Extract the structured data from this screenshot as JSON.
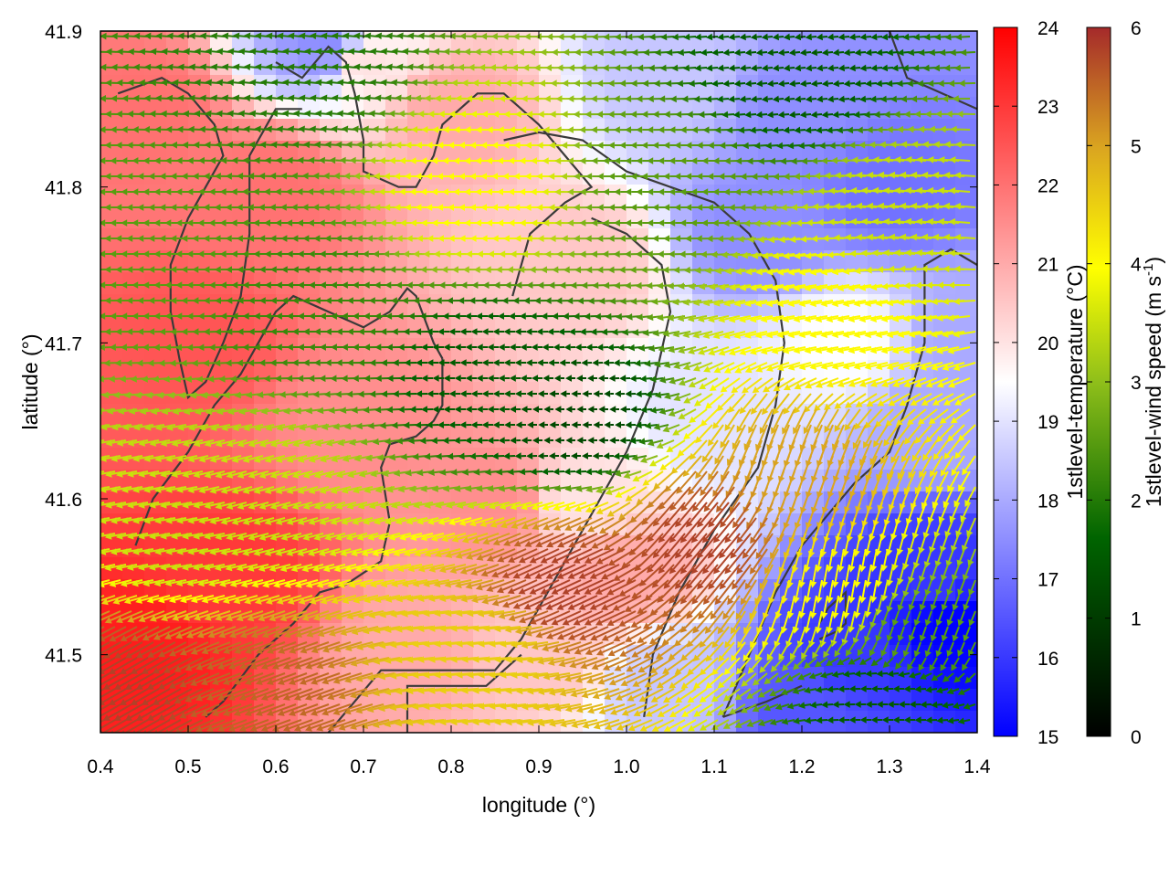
{
  "chart_data": {
    "type": "heatmap",
    "subtype": "temperature field with wind vector overlay and terrain contours",
    "xlabel": "longitude (°)",
    "ylabel": "latitude (°)",
    "xlim": [
      0.4,
      1.4
    ],
    "ylim": [
      41.45,
      41.9
    ],
    "xticks": [
      "0.4",
      "0.5",
      "0.6",
      "0.7",
      "0.8",
      "0.9",
      "1.0",
      "1.1",
      "1.2",
      "1.3",
      "1.4"
    ],
    "yticks": [
      "41.5",
      "41.6",
      "41.7",
      "41.8",
      "41.9"
    ],
    "grid": false,
    "colorbars": [
      {
        "label": "1stlevel-temperature (°C)",
        "range": [
          15,
          24
        ],
        "ticks": [
          "15",
          "16",
          "17",
          "18",
          "19",
          "20",
          "21",
          "22",
          "23",
          "24"
        ],
        "colors": [
          "#0000ff",
          "#ffffff",
          "#ff0000"
        ]
      },
      {
        "label_main": "1stlevel-wind speed (m s",
        "label_sup": "-1",
        "label_end": ")",
        "range": [
          0,
          6
        ],
        "ticks": [
          "0",
          "1",
          "2",
          "3",
          "4",
          "5",
          "6"
        ],
        "colors": [
          "#000000",
          "#006400",
          "#9acd32",
          "#ffff00",
          "#daa520",
          "#a52a2a"
        ]
      }
    ],
    "temperature_field": [
      {
        "lon": 0.45,
        "lat": 41.5,
        "t": 23.5
      },
      {
        "lon": 0.55,
        "lat": 41.55,
        "t": 23.0
      },
      {
        "lon": 0.5,
        "lat": 41.7,
        "t": 22.5
      },
      {
        "lon": 0.45,
        "lat": 41.85,
        "t": 22.0
      },
      {
        "lon": 0.6,
        "lat": 41.8,
        "t": 22.0
      },
      {
        "lon": 0.7,
        "lat": 41.65,
        "t": 21.5
      },
      {
        "lon": 0.8,
        "lat": 41.85,
        "t": 21.0
      },
      {
        "lon": 0.85,
        "lat": 41.6,
        "t": 21.5
      },
      {
        "lon": 0.95,
        "lat": 41.75,
        "t": 20.5
      },
      {
        "lon": 0.95,
        "lat": 41.6,
        "t": 20.0
      },
      {
        "lon": 1.0,
        "lat": 41.55,
        "t": 21.0
      },
      {
        "lon": 0.7,
        "lat": 41.88,
        "t": 20.0
      },
      {
        "lon": 0.66,
        "lat": 41.89,
        "t": 17.5
      },
      {
        "lon": 1.05,
        "lat": 41.87,
        "t": 18.5
      },
      {
        "lon": 1.2,
        "lat": 41.85,
        "t": 17.5
      },
      {
        "lon": 1.3,
        "lat": 41.8,
        "t": 17.0
      },
      {
        "lon": 1.15,
        "lat": 41.77,
        "t": 17.5
      },
      {
        "lon": 1.1,
        "lat": 41.65,
        "t": 19.0
      },
      {
        "lon": 1.25,
        "lat": 41.7,
        "t": 19.5
      },
      {
        "lon": 1.35,
        "lat": 41.65,
        "t": 18.0
      },
      {
        "lon": 1.35,
        "lat": 41.55,
        "t": 16.0
      },
      {
        "lon": 1.37,
        "lat": 41.52,
        "t": 15.0
      },
      {
        "lon": 1.25,
        "lat": 41.5,
        "t": 16.0
      },
      {
        "lon": 1.2,
        "lat": 41.47,
        "t": 16.5
      },
      {
        "lon": 1.05,
        "lat": 41.48,
        "t": 18.5
      },
      {
        "lon": 0.9,
        "lat": 41.5,
        "t": 20.5
      },
      {
        "lon": 0.75,
        "lat": 41.5,
        "t": 21.0
      },
      {
        "lon": 1.38,
        "lat": 41.7,
        "t": 18.0
      }
    ],
    "wind_speed_zones": [
      {
        "lon": 0.45,
        "lat": 41.48,
        "speed": 5.8,
        "dir_deg": 210
      },
      {
        "lon": 0.6,
        "lat": 41.48,
        "speed": 5.5,
        "dir_deg": 200
      },
      {
        "lon": 0.85,
        "lat": 41.5,
        "speed": 4.5,
        "dir_deg": 185
      },
      {
        "lon": 0.95,
        "lat": 41.55,
        "speed": 5.8,
        "dir_deg": 205
      },
      {
        "lon": 1.1,
        "lat": 41.58,
        "speed": 5.8,
        "dir_deg": 230
      },
      {
        "lon": 1.2,
        "lat": 41.62,
        "speed": 5.0,
        "dir_deg": 250
      },
      {
        "lon": 1.25,
        "lat": 41.55,
        "speed": 4.0,
        "dir_deg": 260
      },
      {
        "lon": 1.33,
        "lat": 41.52,
        "speed": 2.5,
        "dir_deg": 250
      },
      {
        "lon": 1.25,
        "lat": 41.72,
        "speed": 4.0,
        "dir_deg": 190
      },
      {
        "lon": 1.32,
        "lat": 41.78,
        "speed": 3.5,
        "dir_deg": 175
      },
      {
        "lon": 0.5,
        "lat": 41.58,
        "speed": 3.5,
        "dir_deg": 190
      },
      {
        "lon": 0.45,
        "lat": 41.75,
        "speed": 2.5,
        "dir_deg": 180
      },
      {
        "lon": 0.65,
        "lat": 41.72,
        "speed": 2.2,
        "dir_deg": 180
      },
      {
        "lon": 0.85,
        "lat": 41.68,
        "speed": 1.5,
        "dir_deg": 180
      },
      {
        "lon": 0.95,
        "lat": 41.65,
        "speed": 1.2,
        "dir_deg": 180
      },
      {
        "lon": 0.85,
        "lat": 41.8,
        "speed": 4.0,
        "dir_deg": 180
      },
      {
        "lon": 1.05,
        "lat": 41.8,
        "speed": 2.5,
        "dir_deg": 180
      },
      {
        "lon": 0.65,
        "lat": 41.88,
        "speed": 2.0,
        "dir_deg": 175
      },
      {
        "lon": 1.2,
        "lat": 41.87,
        "speed": 1.5,
        "dir_deg": 185
      },
      {
        "lon": 1.3,
        "lat": 41.47,
        "speed": 1.5,
        "dir_deg": 180
      },
      {
        "lon": 0.6,
        "lat": 41.6,
        "speed": 3.5,
        "dir_deg": 195
      }
    ],
    "contours": [
      [
        [
          0.42,
          41.86
        ],
        [
          0.47,
          41.87
        ],
        [
          0.5,
          41.86
        ],
        [
          0.53,
          41.84
        ],
        [
          0.54,
          41.82
        ],
        [
          0.52,
          41.8
        ],
        [
          0.5,
          41.78
        ],
        [
          0.48,
          41.75
        ],
        [
          0.48,
          41.72
        ],
        [
          0.49,
          41.69
        ],
        [
          0.5,
          41.665
        ],
        [
          0.52,
          41.675
        ],
        [
          0.54,
          41.7
        ],
        [
          0.56,
          41.73
        ],
        [
          0.57,
          41.77
        ],
        [
          0.57,
          41.82
        ],
        [
          0.6,
          41.85
        ],
        [
          0.63,
          41.85
        ]
      ],
      [
        [
          0.44,
          41.57
        ],
        [
          0.46,
          41.6
        ],
        [
          0.5,
          41.63
        ],
        [
          0.53,
          41.66
        ],
        [
          0.56,
          41.68
        ],
        [
          0.58,
          41.7
        ],
        [
          0.6,
          41.72
        ],
        [
          0.62,
          41.73
        ],
        [
          0.66,
          41.72
        ],
        [
          0.7,
          41.71
        ],
        [
          0.73,
          41.72
        ],
        [
          0.75,
          41.735
        ],
        [
          0.76,
          41.73
        ],
        [
          0.78,
          41.7
        ],
        [
          0.79,
          41.69
        ]
      ],
      [
        [
          0.52,
          41.46
        ],
        [
          0.54,
          41.47
        ],
        [
          0.58,
          41.5
        ],
        [
          0.62,
          41.52
        ],
        [
          0.65,
          41.54
        ],
        [
          0.68,
          41.545
        ],
        [
          0.72,
          41.56
        ],
        [
          0.73,
          41.585
        ],
        [
          0.72,
          41.62
        ],
        [
          0.73,
          41.635
        ],
        [
          0.76,
          41.64
        ],
        [
          0.78,
          41.65
        ],
        [
          0.79,
          41.66
        ],
        [
          0.79,
          41.69
        ]
      ],
      [
        [
          0.6,
          41.88
        ],
        [
          0.63,
          41.87
        ],
        [
          0.66,
          41.89
        ],
        [
          0.68,
          41.88
        ],
        [
          0.69,
          41.86
        ],
        [
          0.7,
          41.83
        ],
        [
          0.7,
          41.81
        ],
        [
          0.74,
          41.8
        ],
        [
          0.76,
          41.8
        ],
        [
          0.78,
          41.82
        ],
        [
          0.79,
          41.84
        ],
        [
          0.81,
          41.85
        ],
        [
          0.83,
          41.86
        ],
        [
          0.86,
          41.86
        ],
        [
          0.88,
          41.85
        ],
        [
          0.9,
          41.84
        ],
        [
          0.93,
          41.82
        ],
        [
          0.96,
          41.8
        ],
        [
          0.93,
          41.79
        ],
        [
          0.89,
          41.77
        ],
        [
          0.88,
          41.75
        ],
        [
          0.87,
          41.73
        ]
      ],
      [
        [
          0.86,
          41.83
        ],
        [
          0.9,
          41.835
        ],
        [
          0.95,
          41.83
        ],
        [
          1.0,
          41.81
        ],
        [
          1.05,
          41.8
        ],
        [
          1.1,
          41.79
        ],
        [
          1.14,
          41.77
        ],
        [
          1.17,
          41.74
        ],
        [
          1.18,
          41.7
        ],
        [
          1.17,
          41.66
        ],
        [
          1.15,
          41.62
        ],
        [
          1.1,
          41.58
        ],
        [
          1.06,
          41.54
        ],
        [
          1.03,
          41.5
        ],
        [
          1.02,
          41.46
        ]
      ],
      [
        [
          0.66,
          41.45
        ],
        [
          0.69,
          41.47
        ],
        [
          0.72,
          41.49
        ],
        [
          0.75,
          41.49
        ],
        [
          0.8,
          41.49
        ],
        [
          0.85,
          41.49
        ],
        [
          0.88,
          41.51
        ],
        [
          0.91,
          41.54
        ],
        [
          0.94,
          41.57
        ],
        [
          0.97,
          41.6
        ],
        [
          1.0,
          41.63
        ],
        [
          1.03,
          41.67
        ],
        [
          1.05,
          41.72
        ],
        [
          1.04,
          41.75
        ],
        [
          1.0,
          41.77
        ],
        [
          0.96,
          41.78
        ]
      ],
      [
        [
          1.11,
          41.46
        ],
        [
          1.14,
          41.5
        ],
        [
          1.17,
          41.54
        ],
        [
          1.2,
          41.57
        ],
        [
          1.23,
          41.59
        ],
        [
          1.26,
          41.61
        ],
        [
          1.3,
          41.63
        ],
        [
          1.32,
          41.66
        ],
        [
          1.34,
          41.7
        ],
        [
          1.34,
          41.75
        ],
        [
          1.37,
          41.76
        ],
        [
          1.4,
          41.75
        ]
      ],
      [
        [
          0.75,
          41.45
        ],
        [
          0.75,
          41.48
        ],
        [
          0.78,
          41.48
        ],
        [
          0.84,
          41.48
        ],
        [
          0.88,
          41.5
        ]
      ],
      [
        [
          1.22,
          41.51
        ],
        [
          1.24,
          41.515
        ],
        [
          1.25,
          41.52
        ],
        [
          1.25,
          41.54
        ],
        [
          1.23,
          41.53
        ],
        [
          1.22,
          41.52
        ]
      ],
      [
        [
          1.11,
          41.46
        ],
        [
          1.16,
          41.47
        ],
        [
          1.2,
          41.48
        ]
      ],
      [
        [
          1.3,
          41.9
        ],
        [
          1.32,
          41.87
        ],
        [
          1.36,
          41.86
        ],
        [
          1.4,
          41.85
        ]
      ]
    ]
  }
}
